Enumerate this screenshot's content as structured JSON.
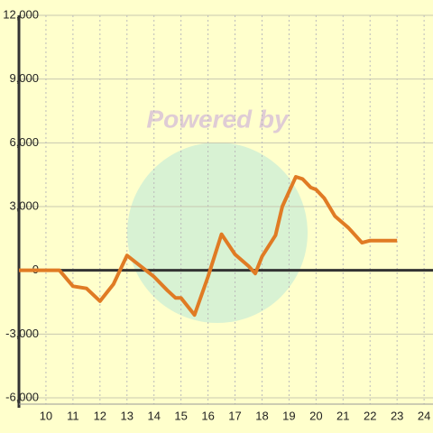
{
  "chart_data": {
    "type": "line",
    "watermark": "Powered by",
    "x": [
      9,
      10.5,
      11,
      11.5,
      12,
      12.5,
      13,
      13.5,
      14,
      14.5,
      14.8,
      15,
      15.5,
      16,
      16.5,
      17,
      17.5,
      17.75,
      18,
      18.5,
      18.75,
      19.25,
      19.5,
      19.8,
      20,
      20.3,
      20.7,
      21.2,
      21.7,
      22,
      23
    ],
    "series": [
      {
        "color": "#e07b24",
        "values": [
          0,
          0,
          -750,
          -850,
          -1450,
          -650,
          700,
          200,
          -300,
          -950,
          -1300,
          -1300,
          -2100,
          -300,
          1700,
          750,
          200,
          -150,
          650,
          1650,
          3000,
          4400,
          4300,
          3900,
          3800,
          3400,
          2550,
          2000,
          1300,
          1400,
          1400
        ]
      }
    ],
    "xlim": [
      9,
      24.33
    ],
    "xticks": [
      10,
      11,
      12,
      13,
      14,
      15,
      16,
      17,
      18,
      19,
      20,
      21,
      22,
      23,
      24
    ],
    "ylim": [
      -6000,
      12000
    ],
    "yticks": [
      {
        "value": -6000,
        "label": "-6,000"
      },
      {
        "value": -3000,
        "label": "-3,000"
      },
      0,
      {
        "value": 3000,
        "label": "3,000"
      },
      {
        "value": 6000,
        "label": "6,000"
      },
      {
        "value": 9000,
        "label": "9,000"
      },
      {
        "value": 12000,
        "label": "12,000"
      }
    ],
    "grid": true
  }
}
